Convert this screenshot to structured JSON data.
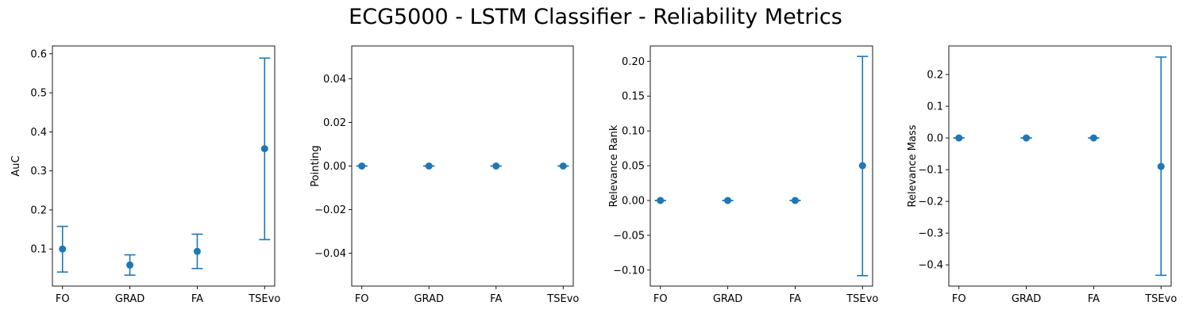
{
  "title": "ECG5000 - LSTM Classifier - Reliability Metrics",
  "series_color": "#1f77b4",
  "chart_data": [
    {
      "type": "scatter",
      "subtype": "errorbar",
      "categories": [
        "FO",
        "GRAD",
        "FA",
        "TSEvo"
      ],
      "values": [
        0.1,
        0.059,
        0.094,
        0.357
      ],
      "error_low": [
        0.041,
        0.033,
        0.05,
        0.124
      ],
      "error_high": [
        0.158,
        0.085,
        0.138,
        0.589
      ],
      "ylabel": "AuC",
      "ylim": [
        0.005,
        0.62
      ],
      "yticks": [
        0.1,
        0.2,
        0.3,
        0.4,
        0.5,
        0.6
      ],
      "ytick_labels": [
        "0.1",
        "0.2",
        "0.3",
        "0.4",
        "0.5",
        "0.6"
      ]
    },
    {
      "type": "scatter",
      "subtype": "errorbar",
      "categories": [
        "FO",
        "GRAD",
        "FA",
        "TSEvo"
      ],
      "values": [
        0.0,
        0.0,
        0.0,
        0.0
      ],
      "error_low": [
        0.0,
        0.0,
        0.0,
        0.0
      ],
      "error_high": [
        0.0,
        0.0,
        0.0,
        0.0
      ],
      "ylabel": "Pointing",
      "ylim": [
        -0.055,
        0.055
      ],
      "yticks": [
        -0.04,
        -0.02,
        0.0,
        0.02,
        0.04
      ],
      "ytick_labels": [
        "−0.04",
        "−0.02",
        "0.00",
        "0.02",
        "0.04"
      ]
    },
    {
      "type": "scatter",
      "subtype": "errorbar",
      "categories": [
        "FO",
        "GRAD",
        "FA",
        "TSEvo"
      ],
      "values": [
        0.0,
        0.0,
        0.0,
        0.05
      ],
      "error_low": [
        0.0,
        0.0,
        0.0,
        -0.108
      ],
      "error_high": [
        0.0,
        0.0,
        0.0,
        0.207
      ],
      "ylabel": "Relevance Rank",
      "ylim": [
        -0.123,
        0.222
      ],
      "yticks": [
        -0.1,
        -0.05,
        0.0,
        0.05,
        0.1,
        0.15,
        0.2
      ],
      "ytick_labels": [
        "−0.10",
        "−0.05",
        "0.00",
        "0.05",
        "0.10",
        "0.15",
        "0.20"
      ]
    },
    {
      "type": "scatter",
      "subtype": "errorbar",
      "categories": [
        "FO",
        "GRAD",
        "FA",
        "TSEvo"
      ],
      "values": [
        0.0,
        0.0,
        0.0,
        -0.09
      ],
      "error_low": [
        0.0,
        0.0,
        0.0,
        -0.433
      ],
      "error_high": [
        0.0,
        0.0,
        0.0,
        0.255
      ],
      "ylabel": "Relevance Mass",
      "ylim": [
        -0.467,
        0.29
      ],
      "yticks": [
        -0.4,
        -0.3,
        -0.2,
        -0.1,
        0.0,
        0.1,
        0.2
      ],
      "ytick_labels": [
        "−0.4",
        "−0.3",
        "−0.2",
        "−0.1",
        "0.0",
        "0.1",
        "0.2"
      ]
    }
  ]
}
